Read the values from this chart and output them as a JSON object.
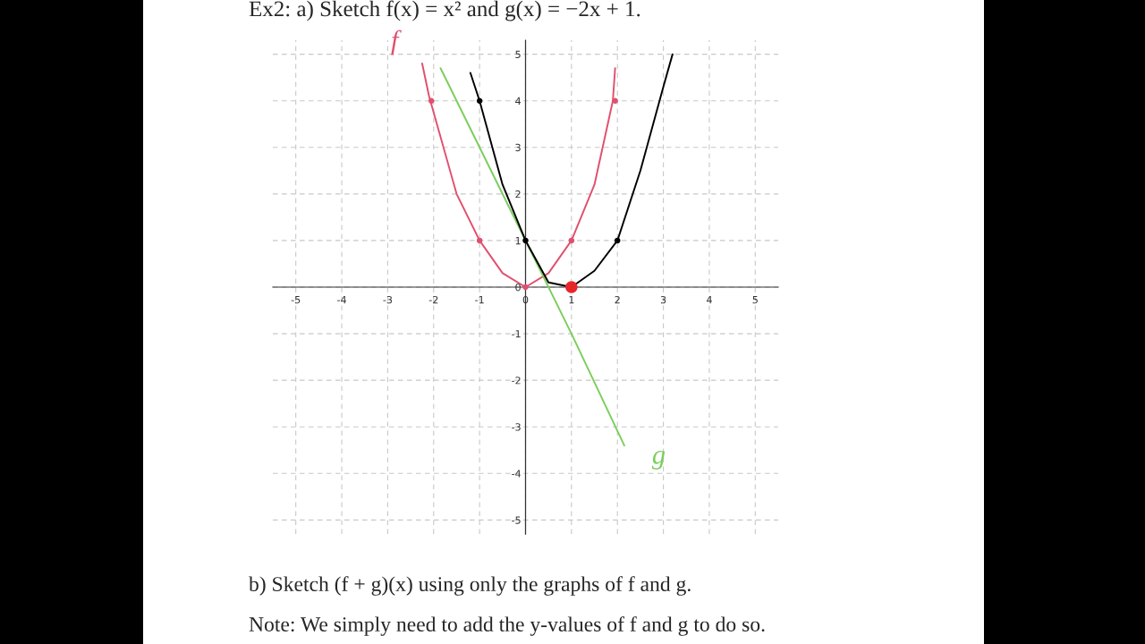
{
  "chart_data": {
    "type": "line",
    "title": "Ex2: a) Sketch f(x) = x² and g(x) = −2x + 1.",
    "xlim": [
      -5.5,
      5.5
    ],
    "ylim": [
      -5.3,
      5.3
    ],
    "xticks": [
      -5,
      -4,
      -3,
      -2,
      -1,
      0,
      1,
      2,
      3,
      4,
      5
    ],
    "yticks": [
      -5,
      -4,
      -3,
      -2,
      -1,
      0,
      1,
      2,
      3,
      4,
      5
    ],
    "grid": true,
    "marker": "none",
    "line_style": "solid",
    "series": [
      {
        "name": "f",
        "color": "#e0506e",
        "x": [
          -2.25,
          -2.1,
          -1.5,
          -1,
          -0.5,
          0,
          0.5,
          1,
          1.5,
          1.9,
          1.95
        ],
        "values": [
          4.8,
          4.1,
          2.0,
          1,
          0.3,
          0,
          0.3,
          1,
          2.2,
          4,
          4.7
        ]
      },
      {
        "name": "g",
        "color": "#7ccd5c",
        "x": [
          -1.85,
          -1,
          1,
          2.15
        ],
        "values": [
          4.7,
          3,
          -1,
          -3.4
        ]
      },
      {
        "color": "#000000",
        "x": [
          -1.2,
          -1,
          -0.5,
          0,
          0.5,
          1,
          1.5,
          2,
          2.5,
          3,
          3.2
        ],
        "values": [
          4.6,
          4,
          2.2,
          1,
          0.1,
          0,
          0.35,
          1,
          2.5,
          4.3,
          5
        ]
      },
      {
        "type": "scatter",
        "marker": "circle",
        "color": "#e0506e",
        "x": [
          -2.05,
          -1,
          0,
          1,
          1.95
        ],
        "values": [
          4,
          1,
          0,
          1,
          4
        ]
      },
      {
        "type": "scatter",
        "marker": "circle",
        "color": "#000000",
        "x": [
          -1,
          0,
          2
        ],
        "values": [
          4,
          1,
          1
        ]
      },
      {
        "type": "scatter",
        "marker": "circle",
        "color": "#e8262a",
        "x": [
          1
        ],
        "values": [
          0
        ]
      }
    ],
    "annotations": [
      "b) Sketch (f + g)(x) using only the graphs of f and g.",
      "Note: We simply need to add the y-values of f and g to do so."
    ]
  }
}
